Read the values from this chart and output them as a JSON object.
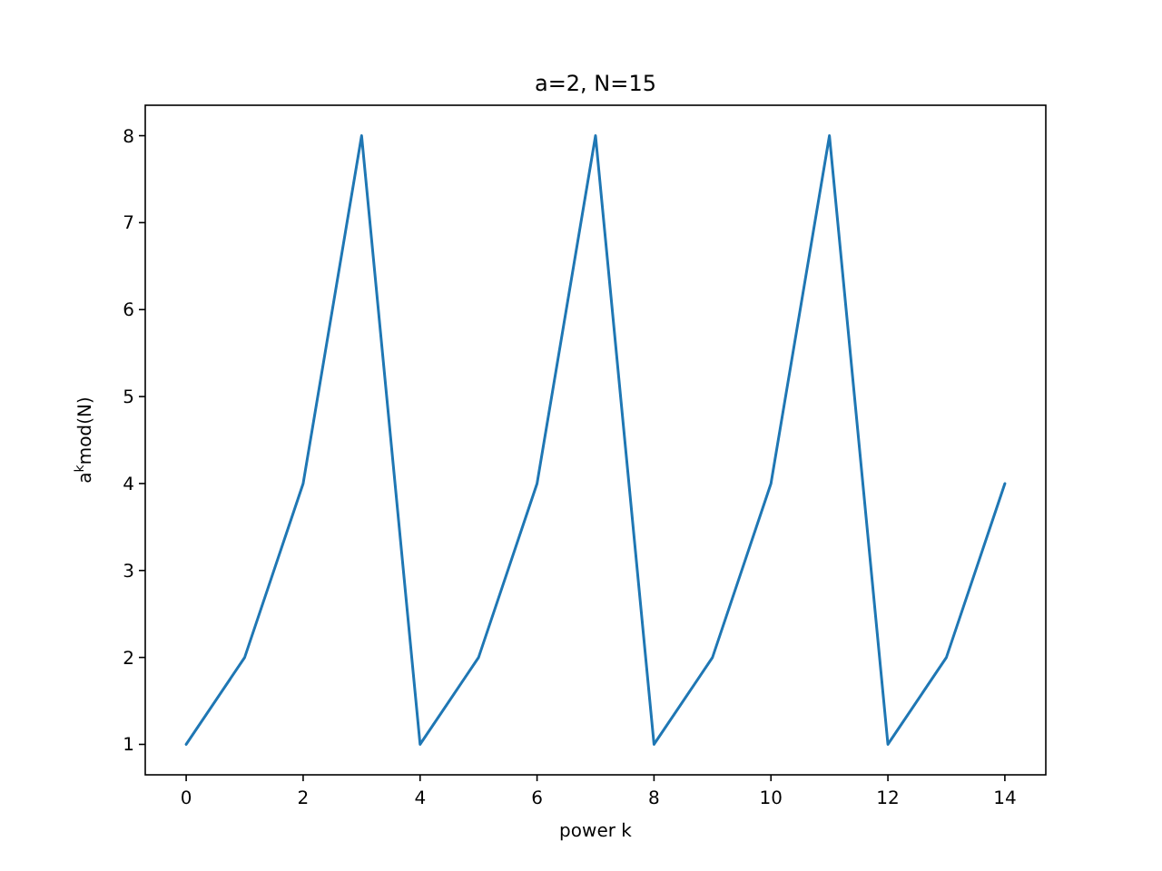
{
  "chart_data": {
    "type": "line",
    "title": "a=2, N=15",
    "xlabel": "power k",
    "ylabel": "a$^{k}$mod(N)",
    "x": [
      0,
      1,
      2,
      3,
      4,
      5,
      6,
      7,
      8,
      9,
      10,
      11,
      12,
      13,
      14
    ],
    "series": [
      {
        "color": "#1f77b4",
        "values": [
          1,
          2,
          4,
          8,
          1,
          2,
          4,
          8,
          1,
          2,
          4,
          8,
          1,
          2,
          4
        ]
      }
    ],
    "xlim": [
      -0.7,
      14.7
    ],
    "ylim": [
      0.65,
      8.35
    ],
    "xticks": [
      0,
      2,
      4,
      6,
      8,
      10,
      12,
      14
    ],
    "yticks": [
      1,
      2,
      3,
      4,
      5,
      6,
      7,
      8
    ],
    "grid": false,
    "marker": "none",
    "line_style": "solid"
  }
}
